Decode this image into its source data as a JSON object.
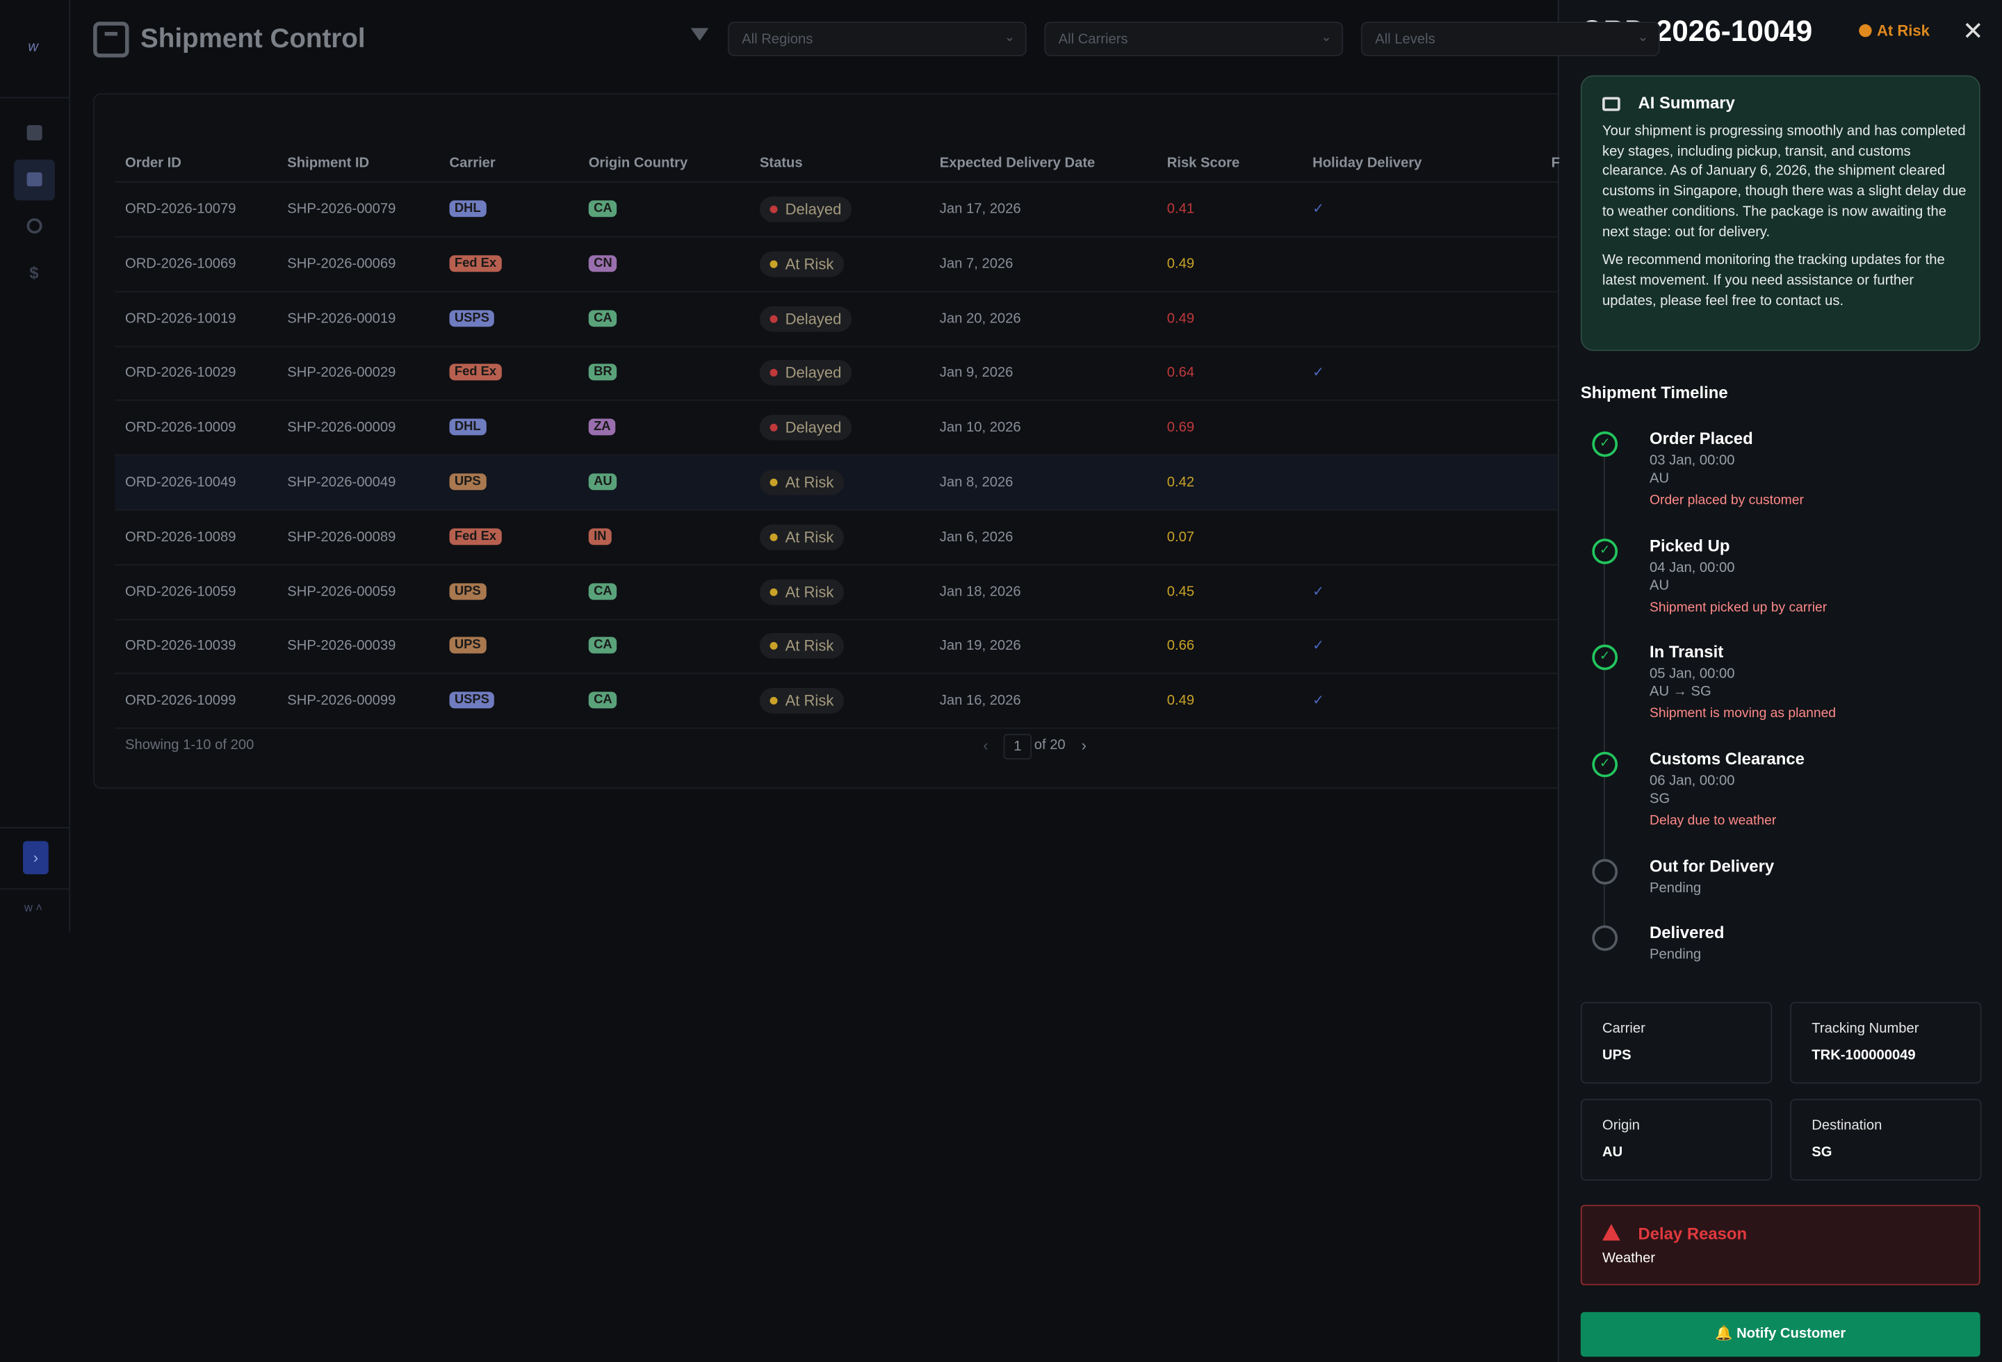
{
  "header": {
    "title": "Shipment Control",
    "filters": [
      "All Regions",
      "All Carriers",
      "All Levels"
    ]
  },
  "table": {
    "columns": [
      "Order ID",
      "Shipment ID",
      "Carrier",
      "Origin Country",
      "Status",
      "Expected Delivery Date",
      "Risk Score",
      "Holiday Delivery",
      "F"
    ],
    "rows": [
      {
        "order_id": "ORD-2026-10079",
        "shipment_id": "SHP-2026-00079",
        "carrier": "DHL",
        "carrier_color": "#6f7cc0",
        "origin": "CA",
        "origin_color": "#5aa27a",
        "status": "Delayed",
        "status_color": "#c0393b",
        "expected": "Jan 17, 2026",
        "risk": 0.41,
        "holiday": true
      },
      {
        "order_id": "ORD-2026-10069",
        "shipment_id": "SHP-2026-00069",
        "carrier": "Fed Ex",
        "carrier_color": "#b8604f",
        "origin": "CN",
        "origin_color": "#9a6fae",
        "status": "At Risk",
        "status_color": "#c9a227",
        "expected": "Jan 7, 2026",
        "risk": 0.49,
        "holiday": false
      },
      {
        "order_id": "ORD-2026-10019",
        "shipment_id": "SHP-2026-00019",
        "carrier": "USPS",
        "carrier_color": "#6f7cc0",
        "origin": "CA",
        "origin_color": "#5aa27a",
        "status": "Delayed",
        "status_color": "#c0393b",
        "expected": "Jan 20, 2026",
        "risk": 0.49,
        "holiday": false
      },
      {
        "order_id": "ORD-2026-10029",
        "shipment_id": "SHP-2026-00029",
        "carrier": "Fed Ex",
        "carrier_color": "#b8604f",
        "origin": "BR",
        "origin_color": "#5aa27a",
        "status": "Delayed",
        "status_color": "#c0393b",
        "expected": "Jan 9, 2026",
        "risk": 0.64,
        "holiday": true
      },
      {
        "order_id": "ORD-2026-10009",
        "shipment_id": "SHP-2026-00009",
        "carrier": "DHL",
        "carrier_color": "#6f7cc0",
        "origin": "ZA",
        "origin_color": "#9a6fae",
        "status": "Delayed",
        "status_color": "#c0393b",
        "expected": "Jan 10, 2026",
        "risk": 0.69,
        "holiday": false
      },
      {
        "order_id": "ORD-2026-10049",
        "shipment_id": "SHP-2026-00049",
        "carrier": "UPS",
        "carrier_color": "#a9784f",
        "origin": "AU",
        "origin_color": "#5aa27a",
        "status": "At Risk",
        "status_color": "#c9a227",
        "expected": "Jan 8, 2026",
        "risk": 0.42,
        "holiday": false
      },
      {
        "order_id": "ORD-2026-10089",
        "shipment_id": "SHP-2026-00089",
        "carrier": "Fed Ex",
        "carrier_color": "#b8604f",
        "origin": "IN",
        "origin_color": "#b8604f",
        "status": "At Risk",
        "status_color": "#c9a227",
        "expected": "Jan 6, 2026",
        "risk": 0.07,
        "holiday": false
      },
      {
        "order_id": "ORD-2026-10059",
        "shipment_id": "SHP-2026-00059",
        "carrier": "UPS",
        "carrier_color": "#a9784f",
        "origin": "CA",
        "origin_color": "#5aa27a",
        "status": "At Risk",
        "status_color": "#c9a227",
        "expected": "Jan 18, 2026",
        "risk": 0.45,
        "holiday": true
      },
      {
        "order_id": "ORD-2026-10039",
        "shipment_id": "SHP-2026-00039",
        "carrier": "UPS",
        "carrier_color": "#a9784f",
        "origin": "CA",
        "origin_color": "#5aa27a",
        "status": "At Risk",
        "status_color": "#c9a227",
        "expected": "Jan 19, 2026",
        "risk": 0.66,
        "holiday": true
      },
      {
        "order_id": "ORD-2026-10099",
        "shipment_id": "SHP-2026-00099",
        "carrier": "USPS",
        "carrier_color": "#6f7cc0",
        "origin": "CA",
        "origin_color": "#5aa27a",
        "status": "At Risk",
        "status_color": "#c9a227",
        "expected": "Jan 16, 2026",
        "risk": 0.49,
        "holiday": true
      }
    ],
    "showing": "Showing 1-10 of 200",
    "page": "1",
    "of_pages": "of 20"
  },
  "panel": {
    "order_id": "ORD-2026-10049",
    "status": "At Risk",
    "ai_summary": {
      "title": "AI Summary",
      "paragraphs": [
        "Your shipment is progressing smoothly and has completed key stages, including pickup, transit, and customs clearance. As of January 6, 2026, the shipment cleared customs in Singapore, though there was a slight delay due to weather conditions. The package is now awaiting the next stage: out for delivery.",
        "We recommend monitoring the tracking updates for the latest movement. If you need assistance or further updates, please feel free to contact us."
      ]
    },
    "timeline": {
      "title": "Shipment Timeline",
      "events": [
        {
          "title": "Order Placed",
          "time": "03 Jan, 00:00",
          "location": "AU",
          "note": "Order placed by customer",
          "done": true
        },
        {
          "title": "Picked Up",
          "time": "04 Jan, 00:00",
          "location": "AU",
          "note": "Shipment picked up by carrier",
          "done": true
        },
        {
          "title": "In Transit",
          "time": "05 Jan, 00:00",
          "location": "AU → SG",
          "note": "Shipment is moving as planned",
          "done": true
        },
        {
          "title": "Customs Clearance",
          "time": "06 Jan, 00:00",
          "location": "SG",
          "note": "Delay due to weather",
          "done": true
        },
        {
          "title": "Out for Delivery",
          "time": "Pending",
          "done": false
        },
        {
          "title": "Delivered",
          "time": "Pending",
          "done": false
        }
      ]
    },
    "details": [
      {
        "label": "Carrier",
        "value": "UPS"
      },
      {
        "label": "Tracking Number",
        "value": "TRK-100000049"
      },
      {
        "label": "Origin",
        "value": "AU"
      },
      {
        "label": "Destination",
        "value": "SG"
      }
    ],
    "delay": {
      "title": "Delay Reason",
      "value": "Weather"
    },
    "action": "Notify Customer"
  }
}
